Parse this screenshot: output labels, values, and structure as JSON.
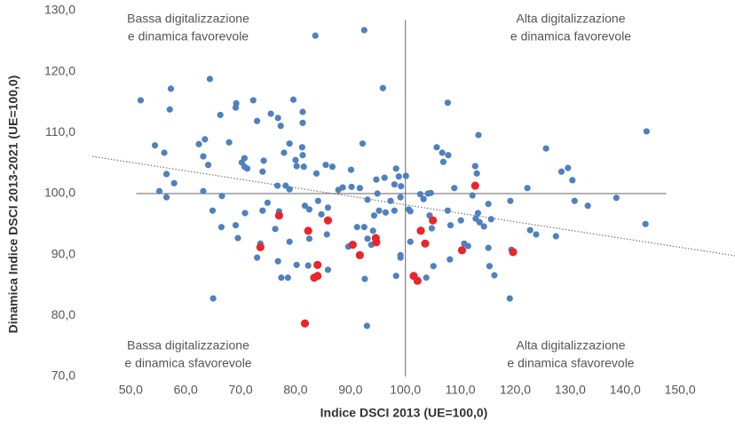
{
  "chart_data": {
    "type": "scatter",
    "xlabel": "Indice DSCI 2013 (UE=100,0)",
    "ylabel": "Dinamica Indice DSCI 2013-2021 (UE=100,0)",
    "xlim": [
      43,
      160
    ],
    "ylim": [
      70,
      130
    ],
    "xticks": [
      {
        "value": 50,
        "label": "50,0"
      },
      {
        "value": 60,
        "label": "60,0"
      },
      {
        "value": 70,
        "label": "70,0"
      },
      {
        "value": 80,
        "label": "80,0"
      },
      {
        "value": 90,
        "label": "90,0"
      },
      {
        "value": 100,
        "label": "100,0"
      },
      {
        "value": 110,
        "label": "110,0"
      },
      {
        "value": 120,
        "label": "120,0"
      },
      {
        "value": 130,
        "label": "130,0"
      },
      {
        "value": 140,
        "label": "140,0"
      },
      {
        "value": 150,
        "label": "150,0"
      }
    ],
    "yticks": [
      {
        "value": 70,
        "label": "70,0"
      },
      {
        "value": 80,
        "label": "80,0"
      },
      {
        "value": 90,
        "label": "90,0"
      },
      {
        "value": 100,
        "label": "100,0"
      },
      {
        "value": 110,
        "label": "110,0"
      },
      {
        "value": 120,
        "label": "120,0"
      },
      {
        "value": 130,
        "label": "130,0"
      }
    ],
    "grid": false,
    "hline": {
      "y": 100,
      "x": [
        51,
        147.5
      ]
    },
    "vline": {
      "x": 100,
      "y": [
        70,
        128.5
      ]
    },
    "trendline": {
      "x": [
        43,
        160
      ],
      "y": [
        106.1,
        89.8
      ]
    },
    "annotations": [
      {
        "corner": "top-left",
        "lines": [
          "Bassa digitalizzazione",
          "e dinamica favorevole"
        ]
      },
      {
        "corner": "top-right",
        "lines": [
          "Alta digitalizzazione",
          "e dinamica favorevole"
        ]
      },
      {
        "corner": "bottom-left",
        "lines": [
          "Bassa digitalizzazione",
          "e dinamica sfavorevole"
        ]
      },
      {
        "corner": "bottom-right",
        "lines": [
          "Alta digitalizzazione",
          "e dinamica sfavorevole"
        ]
      }
    ],
    "series": [
      {
        "color": "#4f81bd",
        "x": [
          51.8,
          54.4,
          55.2,
          56.1,
          56.5,
          56.5,
          57.3,
          57.1,
          57.9,
          64.4,
          62.4,
          63.5,
          63.2,
          64.1,
          63.2,
          64.9,
          65.0,
          66.5,
          66.3,
          66.6,
          67.9,
          69.1,
          69.2,
          69.1,
          69.5,
          70.2,
          70.7,
          71.2,
          70.7,
          70.8,
          72.3,
          73.0,
          73.0,
          73.6,
          74.0,
          74.2,
          74.0,
          74.9,
          75.5,
          76.8,
          77.3,
          76.7,
          76.3,
          77.0,
          76.8,
          77.4,
          77.9,
          78.2,
          78.9,
          79.6,
          78.9,
          80.0,
          80.2,
          80.2,
          78.9,
          78.6,
          81.3,
          81.3,
          81.2,
          81.3,
          81.5,
          81.7,
          82.5,
          82.5,
          82.3,
          83.6,
          83.8,
          84.1,
          84.7,
          85.5,
          85.7,
          85.9,
          85.9,
          86.7,
          87.8,
          88.6,
          89.6,
          90.1,
          90.2,
          91.2,
          92.2,
          91.7,
          92.5,
          92.5,
          93.0,
          92.6,
          93.1,
          93.1,
          93.8,
          94.1,
          94.3,
          94.9,
          94.7,
          95.2,
          95.9,
          96.2,
          96.4,
          97.3,
          98.0,
          98.0,
          98.3,
          98.8,
          98.3,
          99.1,
          99.1,
          99.1,
          99.2,
          100.6,
          100.1,
          100.9,
          100.9,
          102.7,
          103.3,
          103.8,
          104.1,
          104.6,
          104.4,
          104.8,
          105.1,
          105.7,
          106.7,
          106.9,
          107.7,
          107.8,
          108.1,
          107.7,
          108.2,
          108.9,
          110.1,
          110.7,
          111.4,
          112.2,
          112.7,
          113.3,
          113.0,
          113.2,
          112.8,
          113.5,
          114.3,
          115.1,
          115.6,
          115.1,
          115.3,
          116.2,
          119.0,
          119.1,
          119.3,
          122.2,
          122.7,
          123.8,
          125.6,
          127.4,
          128.4,
          129.6,
          130.4,
          130.8,
          133.2,
          138.4,
          143.9,
          143.7
        ],
        "values": [
          115.3,
          107.9,
          100.4,
          106.7,
          103.2,
          99.4,
          117.2,
          113.8,
          101.7,
          118.8,
          108.1,
          108.9,
          106.1,
          104.7,
          100.4,
          97.2,
          82.8,
          94.5,
          112.9,
          99.6,
          108.4,
          114.1,
          114.8,
          94.8,
          92.7,
          105.1,
          104.4,
          104.1,
          105.8,
          96.8,
          115.3,
          111.9,
          89.5,
          91.8,
          103.6,
          105.4,
          97.2,
          98.5,
          113.1,
          112.4,
          111.1,
          101.3,
          94.2,
          97.1,
          88.9,
          86.2,
          106.7,
          101.3,
          100.7,
          115.4,
          108.2,
          105.5,
          104.5,
          88.3,
          92.1,
          86.2,
          113.4,
          111.6,
          107.6,
          106.3,
          104.4,
          98.0,
          97.4,
          92.6,
          88.2,
          125.9,
          103.3,
          98.8,
          96.6,
          104.7,
          93.3,
          87.5,
          97.7,
          104.4,
          100.6,
          101.0,
          91.3,
          103.9,
          101.1,
          94.5,
          108.2,
          100.9,
          126.8,
          94.5,
          78.3,
          86.0,
          99.0,
          92.6,
          91.6,
          93.9,
          96.4,
          100.0,
          102.3,
          97.2,
          117.3,
          102.6,
          96.9,
          98.8,
          101.5,
          97.2,
          104.1,
          102.8,
          86.5,
          89.5,
          89.9,
          99.4,
          101.2,
          97.4,
          102.9,
          97.1,
          92.1,
          99.9,
          99.1,
          86.2,
          100.0,
          100.1,
          96.4,
          94.3,
          88.1,
          107.6,
          106.7,
          105.2,
          114.9,
          106.3,
          89.2,
          97.2,
          94.8,
          100.9,
          95.6,
          91.8,
          91.4,
          99.7,
          104.5,
          109.6,
          103.3,
          96.8,
          95.9,
          95.3,
          94.6,
          98.3,
          95.8,
          91.1,
          88.1,
          86.6,
          82.8,
          98.8,
          90.8,
          100.9,
          94.0,
          93.3,
          107.4,
          93.0,
          103.6,
          104.2,
          102.2,
          98.8,
          98.0,
          99.3,
          110.2,
          95.0
        ]
      },
      {
        "color": "#e8262b",
        "x": [
          73.6,
          77.0,
          82.3,
          85.9,
          81.7,
          83.4,
          84.0,
          84.0,
          90.4,
          91.7,
          94.6,
          94.7,
          101.5,
          102.2,
          102.8,
          103.6,
          105.0,
          110.3,
          112.7,
          119.6
        ],
        "values": [
          91.2,
          96.4,
          93.9,
          95.6,
          78.7,
          86.2,
          86.5,
          88.3,
          91.6,
          89.9,
          92.7,
          92.0,
          86.5,
          85.7,
          93.9,
          91.8,
          95.6,
          90.7,
          101.3,
          90.4
        ]
      }
    ]
  }
}
